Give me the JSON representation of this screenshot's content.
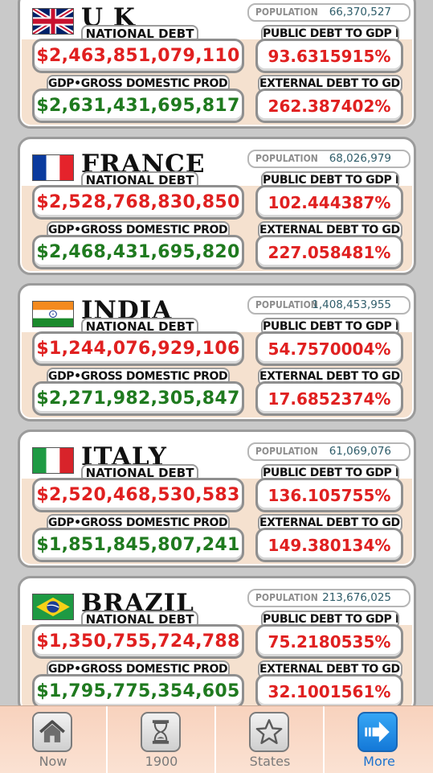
{
  "labels": {
    "population": "POPULATION",
    "national_debt": "NATIONAL DEBT",
    "public_ratio": "PUBLIC DEBT TO GDP RATIO",
    "gdp": "GDP•GROSS DOMESTIC PRODUCT",
    "external_ratio": "EXTERNAL DEBT TO GDP RATIO"
  },
  "countries": [
    {
      "name": "U K",
      "flag": "uk-flag",
      "population": "66,370,527",
      "national_debt": "$2,463,851,079,110",
      "public_ratio": "93.6315915%",
      "gdp": "$2,631,431,695,817",
      "external_ratio": "262.387402%"
    },
    {
      "name": "FRANCE",
      "flag": "france-flag",
      "population": "68,026,979",
      "national_debt": "$2,528,768,830,850",
      "public_ratio": "102.444387%",
      "gdp": "$2,468,431,695,820",
      "external_ratio": "227.058481%"
    },
    {
      "name": "INDIA",
      "flag": "india-flag",
      "population": "1,408,453,955",
      "national_debt": "$1,244,076,929,106",
      "public_ratio": "54.7570004%",
      "gdp": "$2,271,982,305,847",
      "external_ratio": "17.6852374%"
    },
    {
      "name": "ITALY",
      "flag": "italy-flag",
      "population": "61,069,076",
      "national_debt": "$2,520,468,530,583",
      "public_ratio": "136.105755%",
      "gdp": "$1,851,845,807,241",
      "external_ratio": "149.380134%"
    },
    {
      "name": "BRAZIL",
      "flag": "brazil-flag",
      "population": "213,676,025",
      "national_debt": "$1,350,755,724,788",
      "public_ratio": "75.2180535%",
      "gdp": "$1,795,775,354,605",
      "external_ratio": "32.1001561%"
    }
  ],
  "tabbar": {
    "tabs": [
      {
        "label": "Now",
        "icon": "house-icon",
        "active": false
      },
      {
        "label": "1900",
        "icon": "hourglass-icon",
        "active": false
      },
      {
        "label": "States",
        "icon": "star-icon",
        "active": false
      },
      {
        "label": "More",
        "icon": "arrow-right-icon",
        "active": true
      }
    ]
  },
  "colors": {
    "debt_red": "#e02020",
    "gdp_green": "#1f7a1f",
    "population_value": "#2f5d6a",
    "active_tab": "#1c72cf",
    "tabbar_bg": "#f8d2bd"
  }
}
